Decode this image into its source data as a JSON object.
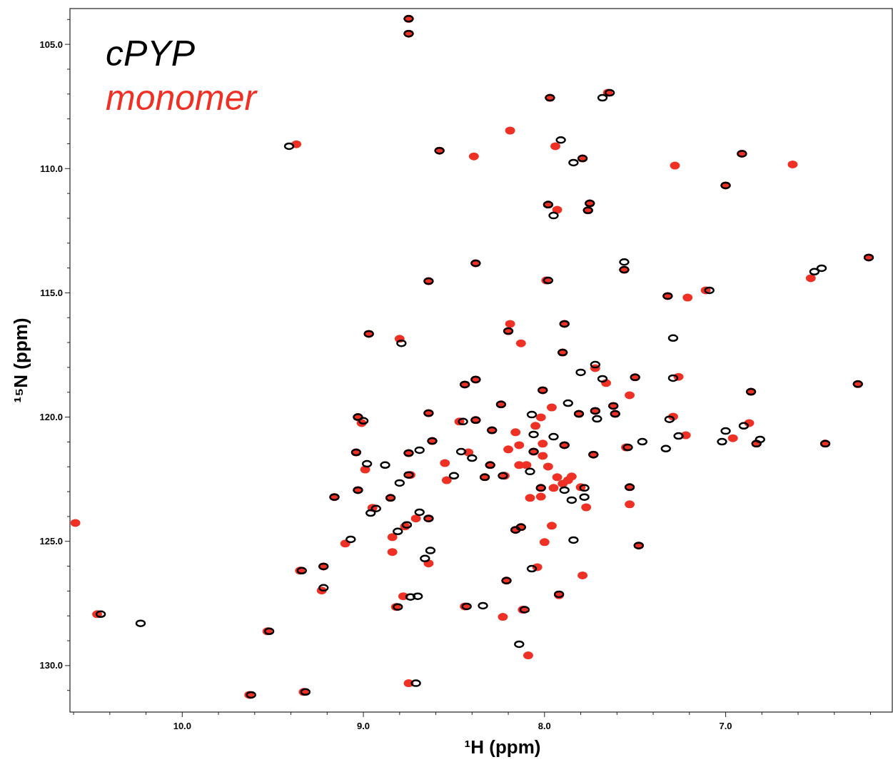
{
  "chart_data": {
    "type": "scatter",
    "xlabel": "¹H (ppm)",
    "ylabel": "¹⁵N (ppm)",
    "xlim": [
      10.62,
      6.08
    ],
    "ylim": [
      131.87,
      103.56
    ],
    "xticks": [
      {
        "value": 10.6,
        "label": null
      },
      {
        "value": 10.4,
        "label": null
      },
      {
        "value": 10.2,
        "label": null
      },
      {
        "value": 10.0,
        "label": "10.0"
      },
      {
        "value": 9.8,
        "label": null
      },
      {
        "value": 9.6,
        "label": null
      },
      {
        "value": 9.4,
        "label": null
      },
      {
        "value": 9.2,
        "label": null
      },
      {
        "value": 9.0,
        "label": "9.0"
      },
      {
        "value": 8.8,
        "label": null
      },
      {
        "value": 8.6,
        "label": null
      },
      {
        "value": 8.4,
        "label": null
      },
      {
        "value": 8.2,
        "label": null
      },
      {
        "value": 8.0,
        "label": "8.0"
      },
      {
        "value": 7.8,
        "label": null
      },
      {
        "value": 7.6,
        "label": null
      },
      {
        "value": 7.4,
        "label": null
      },
      {
        "value": 7.2,
        "label": null
      },
      {
        "value": 7.0,
        "label": "7.0"
      },
      {
        "value": 6.8,
        "label": null
      },
      {
        "value": 6.6,
        "label": null
      },
      {
        "value": 6.4,
        "label": null
      },
      {
        "value": 6.2,
        "label": null
      }
    ],
    "yticks": [
      {
        "value": 104,
        "label": null
      },
      {
        "value": 105,
        "label": "105.0"
      },
      {
        "value": 106,
        "label": null
      },
      {
        "value": 107,
        "label": null
      },
      {
        "value": 108,
        "label": null
      },
      {
        "value": 109,
        "label": null
      },
      {
        "value": 110,
        "label": "110.0"
      },
      {
        "value": 111,
        "label": null
      },
      {
        "value": 112,
        "label": null
      },
      {
        "value": 113,
        "label": null
      },
      {
        "value": 114,
        "label": null
      },
      {
        "value": 115,
        "label": "115.0"
      },
      {
        "value": 116,
        "label": null
      },
      {
        "value": 117,
        "label": null
      },
      {
        "value": 118,
        "label": null
      },
      {
        "value": 119,
        "label": null
      },
      {
        "value": 120,
        "label": "120.0"
      },
      {
        "value": 121,
        "label": null
      },
      {
        "value": 122,
        "label": null
      },
      {
        "value": 123,
        "label": null
      },
      {
        "value": 124,
        "label": null
      },
      {
        "value": 125,
        "label": "125.0"
      },
      {
        "value": 126,
        "label": null
      },
      {
        "value": 127,
        "label": null
      },
      {
        "value": 128,
        "label": null
      },
      {
        "value": 129,
        "label": null
      },
      {
        "value": 130,
        "label": "130.0"
      },
      {
        "value": 131,
        "label": null
      }
    ],
    "legend": "top left",
    "marker": "circle",
    "series": [
      {
        "name": "cPYP",
        "color": "#000000",
        "x": [
          8.75,
          8.75,
          7.97,
          7.64,
          7.68,
          7.91,
          7.84,
          7.79,
          6.91,
          7.0,
          7.98,
          7.95,
          7.75,
          7.76,
          6.21,
          7.56,
          7.56,
          6.51,
          6.47,
          7.98,
          7.32,
          7.09,
          9.41,
          8.58,
          8.38,
          8.64,
          8.97,
          8.79,
          8.2,
          7.89,
          7.9,
          7.72,
          7.8,
          7.68,
          7.5,
          8.44,
          8.38,
          8.01,
          8.24,
          7.87,
          7.81,
          7.72,
          7.71,
          7.62,
          7.61,
          8.07,
          8.06,
          7.95,
          7.89,
          8.06,
          8.08,
          8.02,
          7.89,
          7.78,
          7.85,
          7.78,
          7.53,
          7.54,
          7.73,
          8.64,
          8.45,
          8.38,
          8.29,
          8.62,
          9.03,
          9.0,
          9.04,
          8.75,
          8.69,
          8.46,
          8.4,
          8.98,
          8.88,
          8.3,
          8.75,
          8.5,
          8.33,
          8.23,
          8.8,
          9.03,
          9.16,
          8.85,
          8.93,
          8.96,
          8.69,
          8.64,
          8.76,
          8.81,
          8.16,
          8.13,
          7.84,
          9.07,
          8.63,
          8.66,
          9.22,
          7.48,
          8.07,
          10.45,
          10.23,
          9.52,
          9.62,
          9.32,
          9.34,
          9.22,
          8.81,
          8.74,
          8.7,
          8.43,
          8.34,
          8.71,
          8.21,
          7.92,
          8.11,
          8.14,
          7.29,
          7.29,
          6.86,
          6.27,
          7.31,
          7.26,
          7.46,
          7.33,
          7.0,
          7.02,
          6.9,
          6.81,
          6.83,
          6.45
        ],
        "values": [
          103.97,
          104.57,
          107.15,
          106.95,
          107.15,
          108.85,
          109.76,
          109.59,
          109.4,
          110.68,
          111.45,
          111.89,
          111.4,
          111.68,
          113.58,
          113.76,
          114.07,
          114.15,
          114.01,
          114.5,
          115.13,
          114.9,
          109.1,
          109.28,
          113.81,
          114.53,
          116.65,
          117.03,
          116.54,
          116.25,
          117.4,
          117.89,
          118.2,
          118.46,
          118.4,
          118.69,
          118.49,
          118.92,
          119.49,
          119.44,
          119.87,
          119.75,
          120.07,
          119.55,
          119.87,
          119.9,
          120.7,
          120.79,
          121.13,
          121.39,
          122.19,
          122.85,
          122.94,
          122.85,
          123.34,
          123.22,
          122.82,
          121.22,
          121.51,
          119.84,
          120.18,
          120.12,
          120.53,
          120.96,
          120.0,
          120.15,
          121.42,
          121.45,
          121.33,
          121.39,
          121.65,
          121.88,
          121.93,
          121.93,
          122.33,
          122.36,
          122.42,
          122.36,
          122.65,
          122.94,
          123.22,
          123.25,
          123.68,
          123.86,
          123.83,
          124.08,
          124.34,
          124.6,
          124.54,
          124.43,
          124.95,
          124.92,
          125.37,
          125.69,
          126.01,
          125.17,
          126.1,
          127.93,
          128.3,
          128.62,
          131.18,
          131.06,
          126.18,
          126.87,
          127.64,
          127.24,
          127.21,
          127.62,
          127.59,
          130.71,
          126.58,
          127.13,
          127.75,
          129.14,
          116.82,
          118.43,
          118.98,
          118.67,
          120.09,
          120.76,
          120.99,
          121.27,
          120.56,
          120.99,
          120.35,
          120.9,
          121.07,
          121.07
        ]
      },
      {
        "name": "monomer",
        "color": "#ee3124",
        "x": [
          8.75,
          8.75,
          7.97,
          7.65,
          8.19,
          7.94,
          7.79,
          7.28,
          6.91,
          6.63,
          7.0,
          7.98,
          7.93,
          7.75,
          7.76,
          6.21,
          7.56,
          6.53,
          7.99,
          7.32,
          7.21,
          7.11,
          9.37,
          8.58,
          8.39,
          8.38,
          8.64,
          8.97,
          8.8,
          8.19,
          8.2,
          7.89,
          7.9,
          8.13,
          7.72,
          7.66,
          7.5,
          7.53,
          8.44,
          8.38,
          8.01,
          8.24,
          7.96,
          7.81,
          7.72,
          7.62,
          7.61,
          8.02,
          8.05,
          7.89,
          8.16,
          8.14,
          8.2,
          8.06,
          8.01,
          8.01,
          8.14,
          8.1,
          7.98,
          7.93,
          7.87,
          7.9,
          7.85,
          8.02,
          7.95,
          7.8,
          7.77,
          8.08,
          8.02,
          7.53,
          7.53,
          7.55,
          7.73,
          8.64,
          8.47,
          8.38,
          8.29,
          8.62,
          9.03,
          9.01,
          9.04,
          8.75,
          8.42,
          8.55,
          8.99,
          8.3,
          8.74,
          8.54,
          8.33,
          8.22,
          9.03,
          9.16,
          8.85,
          8.95,
          8.64,
          8.71,
          8.77,
          8.84,
          8.16,
          8.13,
          7.96,
          8.0,
          9.1,
          8.84,
          8.64,
          9.22,
          7.48,
          8.04,
          10.59,
          10.47,
          9.53,
          9.63,
          9.33,
          9.35,
          9.23,
          8.82,
          8.78,
          8.44,
          8.75,
          8.21,
          7.92,
          7.79,
          8.12,
          8.23,
          8.09,
          7.26,
          6.86,
          6.27,
          7.29,
          7.22,
          6.96,
          6.87,
          6.83,
          6.45
        ],
        "values": [
          103.97,
          104.57,
          107.15,
          106.95,
          108.47,
          109.1,
          109.59,
          109.88,
          109.4,
          109.83,
          110.68,
          111.45,
          111.66,
          111.4,
          111.68,
          113.58,
          114.07,
          114.41,
          114.5,
          115.13,
          115.19,
          114.9,
          109.02,
          109.28,
          109.51,
          113.81,
          114.53,
          116.65,
          116.85,
          116.25,
          116.54,
          116.25,
          117.4,
          117.03,
          118.03,
          118.63,
          118.4,
          119.12,
          118.69,
          118.49,
          118.92,
          119.49,
          119.61,
          119.87,
          119.75,
          119.55,
          119.87,
          120.01,
          120.35,
          121.13,
          120.61,
          121.13,
          121.3,
          121.39,
          121.07,
          121.56,
          121.93,
          121.93,
          121.99,
          122.42,
          122.54,
          122.68,
          122.39,
          122.85,
          122.85,
          122.82,
          123.63,
          123.25,
          123.2,
          122.82,
          123.51,
          121.22,
          121.51,
          119.84,
          120.18,
          120.12,
          120.53,
          120.96,
          120.0,
          120.24,
          121.42,
          121.45,
          121.42,
          121.85,
          122.11,
          121.93,
          122.33,
          122.54,
          122.42,
          122.36,
          122.94,
          123.22,
          123.25,
          123.65,
          124.08,
          124.08,
          124.4,
          124.83,
          124.54,
          124.43,
          124.37,
          125.03,
          125.09,
          125.43,
          125.89,
          126.01,
          125.17,
          126.04,
          124.26,
          127.93,
          128.62,
          131.18,
          131.06,
          126.18,
          126.98,
          127.64,
          127.21,
          127.62,
          130.71,
          126.58,
          127.17,
          126.37,
          127.75,
          128.04,
          129.59,
          118.38,
          118.98,
          118.67,
          119.98,
          120.73,
          120.85,
          120.24,
          121.07,
          121.07
        ]
      }
    ]
  }
}
